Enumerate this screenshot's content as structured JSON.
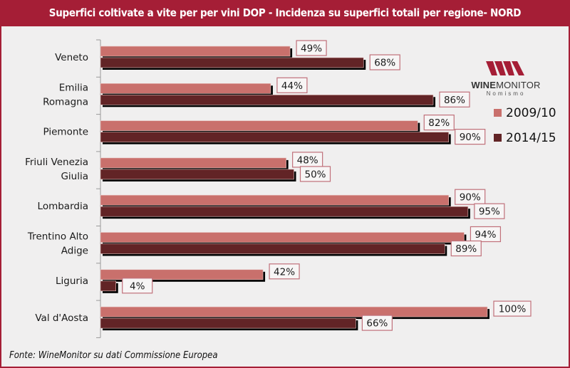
{
  "title": "Superfici coltivate a vite per per vini DOP   - Incidenza su superfici totali  per regione- NORD",
  "source": "Fonte: WineMonitor su dati Commissione Europea",
  "logo": {
    "brand_bold": "WINE",
    "brand_light": "MONITOR",
    "sub": "Nomismo"
  },
  "colors": {
    "frame": "#a51e36",
    "series_2009": "#c9706c",
    "series_2014": "#622426",
    "label_border": "#c0707a"
  },
  "chart_data": {
    "type": "bar",
    "orientation": "horizontal",
    "title": "Superfici coltivate a vite per per vini DOP   - Incidenza su superfici totali  per regione- NORD",
    "xlabel": "",
    "ylabel": "",
    "xlim": [
      0,
      100
    ],
    "grid": false,
    "legend_position": "right",
    "categories": [
      [
        "Veneto"
      ],
      [
        "Emilia",
        "Romagna"
      ],
      [
        "Piemonte"
      ],
      [
        "Friuli Venezia",
        "Giulia"
      ],
      [
        "Lombardia"
      ],
      [
        "Trentino Alto",
        "Adige"
      ],
      [
        "Liguria"
      ],
      [
        "Val d'Aosta"
      ]
    ],
    "series": [
      {
        "name": "2009/10",
        "values": [
          49,
          44,
          82,
          48,
          90,
          94,
          42,
          100
        ],
        "labels": [
          "49%",
          "44%",
          "82%",
          "48%",
          "90%",
          "94%",
          "42%",
          "100%"
        ]
      },
      {
        "name": "2014/15",
        "values": [
          68,
          86,
          90,
          50,
          95,
          89,
          4,
          66
        ],
        "labels": [
          "68%",
          "86%",
          "90%",
          "50%",
          "95%",
          "89%",
          "4%",
          "66%"
        ]
      }
    ]
  }
}
